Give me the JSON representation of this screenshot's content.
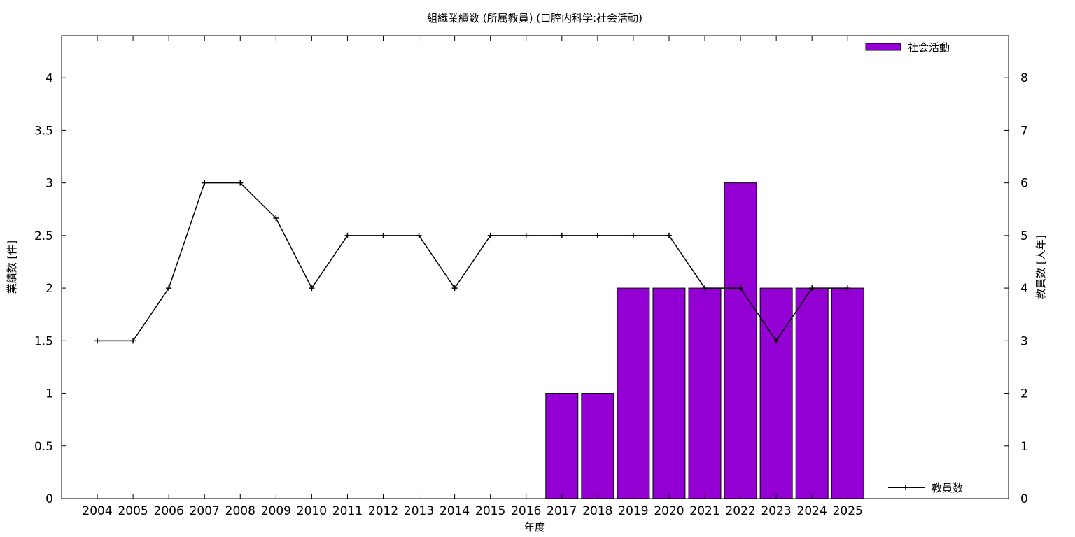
{
  "chart_data": {
    "type": "bar",
    "title": "組織業績数 (所属教員) (口腔内科学:社会活動)",
    "xlabel": "年度",
    "ylabel": "業績数 [件]",
    "y2label": "教員数 [人年]",
    "categories": [
      "2004",
      "2005",
      "2006",
      "2007",
      "2008",
      "2009",
      "2010",
      "2011",
      "2012",
      "2013",
      "2014",
      "2015",
      "2016",
      "2017",
      "2018",
      "2019",
      "2020",
      "2021",
      "2022",
      "2023",
      "2024",
      "2025"
    ],
    "ylim": [
      0,
      4.4
    ],
    "y2lim": [
      0,
      8.8
    ],
    "yticks": [
      "0",
      "0.5",
      "1",
      "1.5",
      "2",
      "2.5",
      "3",
      "3.5",
      "4"
    ],
    "y2ticks": [
      "0",
      "1",
      "2",
      "3",
      "4",
      "5",
      "6",
      "7",
      "8"
    ],
    "grid": false,
    "series": [
      {
        "name": "社会活動",
        "type": "bar",
        "axis": "left",
        "color": "#9400d3",
        "values": [
          0,
          0,
          0,
          0,
          0,
          0,
          0,
          0,
          0,
          0,
          0,
          0,
          0,
          1,
          1,
          2,
          2,
          2,
          3,
          2,
          2,
          2
        ]
      },
      {
        "name": "教員数",
        "type": "line",
        "axis": "right",
        "color": "#000000",
        "marker": "plus",
        "values": [
          3,
          3,
          4,
          6,
          6,
          5.33,
          4,
          5,
          5,
          5,
          4,
          5,
          5,
          5,
          5,
          5,
          5,
          4,
          4,
          3,
          4,
          4
        ]
      }
    ],
    "legend": [
      {
        "label": "社会活動",
        "position": "top-right"
      },
      {
        "label": "教員数",
        "position": "bottom-right"
      }
    ]
  }
}
